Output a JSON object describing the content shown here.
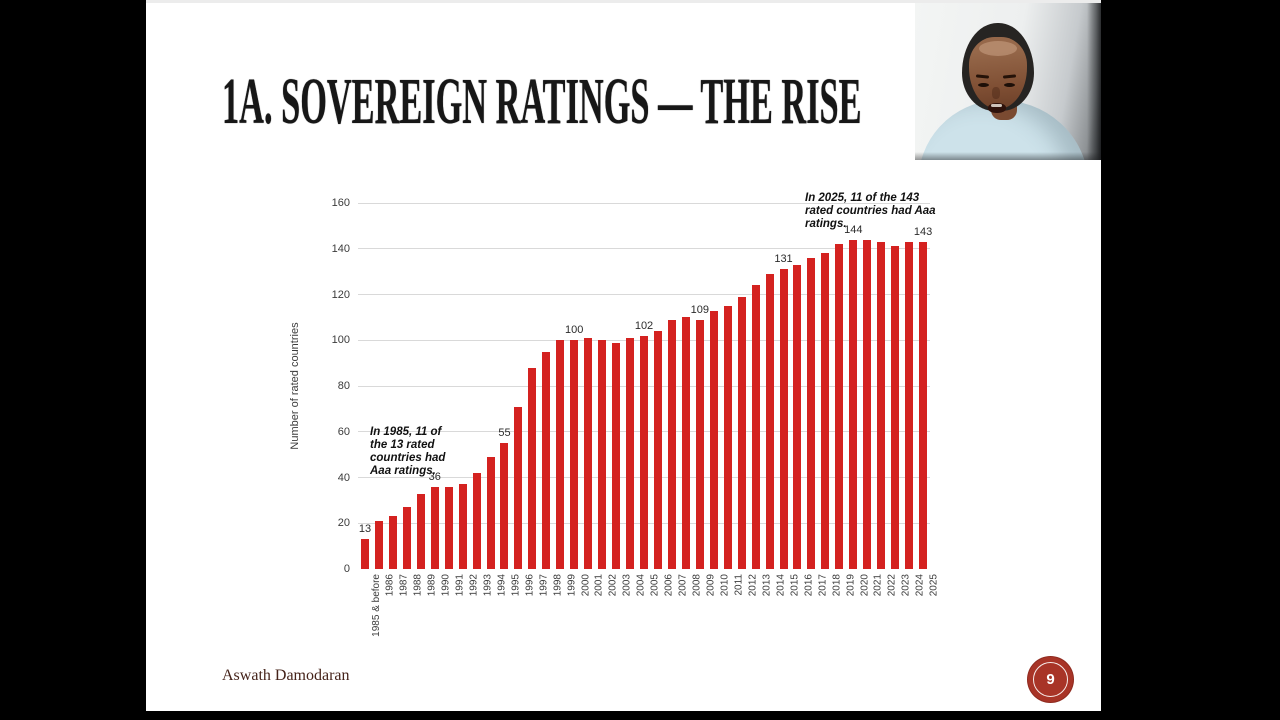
{
  "slide": {
    "title": "1A. SOVEREIGN RATINGS — THE RISE",
    "footer": "Aswath Damodaran",
    "page_number": "9"
  },
  "annotations": {
    "left": "In 1985, 11 of\nthe 13 rated\ncountries had\nAaa ratings.",
    "right": "In 2025, 11 of the 143\nrated countries had Aaa\nratings."
  },
  "chart_data": {
    "type": "bar",
    "title": "",
    "xlabel": "",
    "ylabel": "Number of rated countries",
    "ylim": [
      0,
      160
    ],
    "yticks": [
      0,
      20,
      40,
      60,
      80,
      100,
      120,
      140,
      160
    ],
    "grid": true,
    "legend": "none",
    "categories": [
      "1985 & before",
      "1986",
      "1987",
      "1988",
      "1989",
      "1990",
      "1991",
      "1992",
      "1993",
      "1994",
      "1995",
      "1996",
      "1997",
      "1998",
      "1999",
      "2000",
      "2001",
      "2002",
      "2003",
      "2004",
      "2005",
      "2006",
      "2007",
      "2008",
      "2009",
      "2010",
      "2011",
      "2012",
      "2013",
      "2014",
      "2015",
      "2016",
      "2017",
      "2018",
      "2019",
      "2020",
      "2021",
      "2022",
      "2023",
      "2024",
      "2025"
    ],
    "values": [
      13,
      21,
      23,
      27,
      33,
      36,
      36,
      37,
      42,
      49,
      55,
      71,
      88,
      95,
      100,
      100,
      101,
      100,
      99,
      101,
      102,
      104,
      109,
      110,
      109,
      113,
      115,
      119,
      124,
      129,
      131,
      133,
      136,
      138,
      142,
      144,
      144,
      143,
      141,
      143,
      143
    ],
    "data_labels": {
      "1985 & before": 13,
      "1990": 36,
      "1995": 55,
      "2000": 100,
      "2005": 102,
      "2009": 109,
      "2015": 131,
      "2020": 144,
      "2025": 143
    }
  },
  "colors": {
    "bar": "#d42220",
    "gridline": "#d9d9d9",
    "axis_text": "#3b3b3b",
    "badge_background": "#a83427",
    "footer_text": "#45231a",
    "title_text": "#171717"
  },
  "webcam": {
    "description": "presenter webcam overlay"
  }
}
